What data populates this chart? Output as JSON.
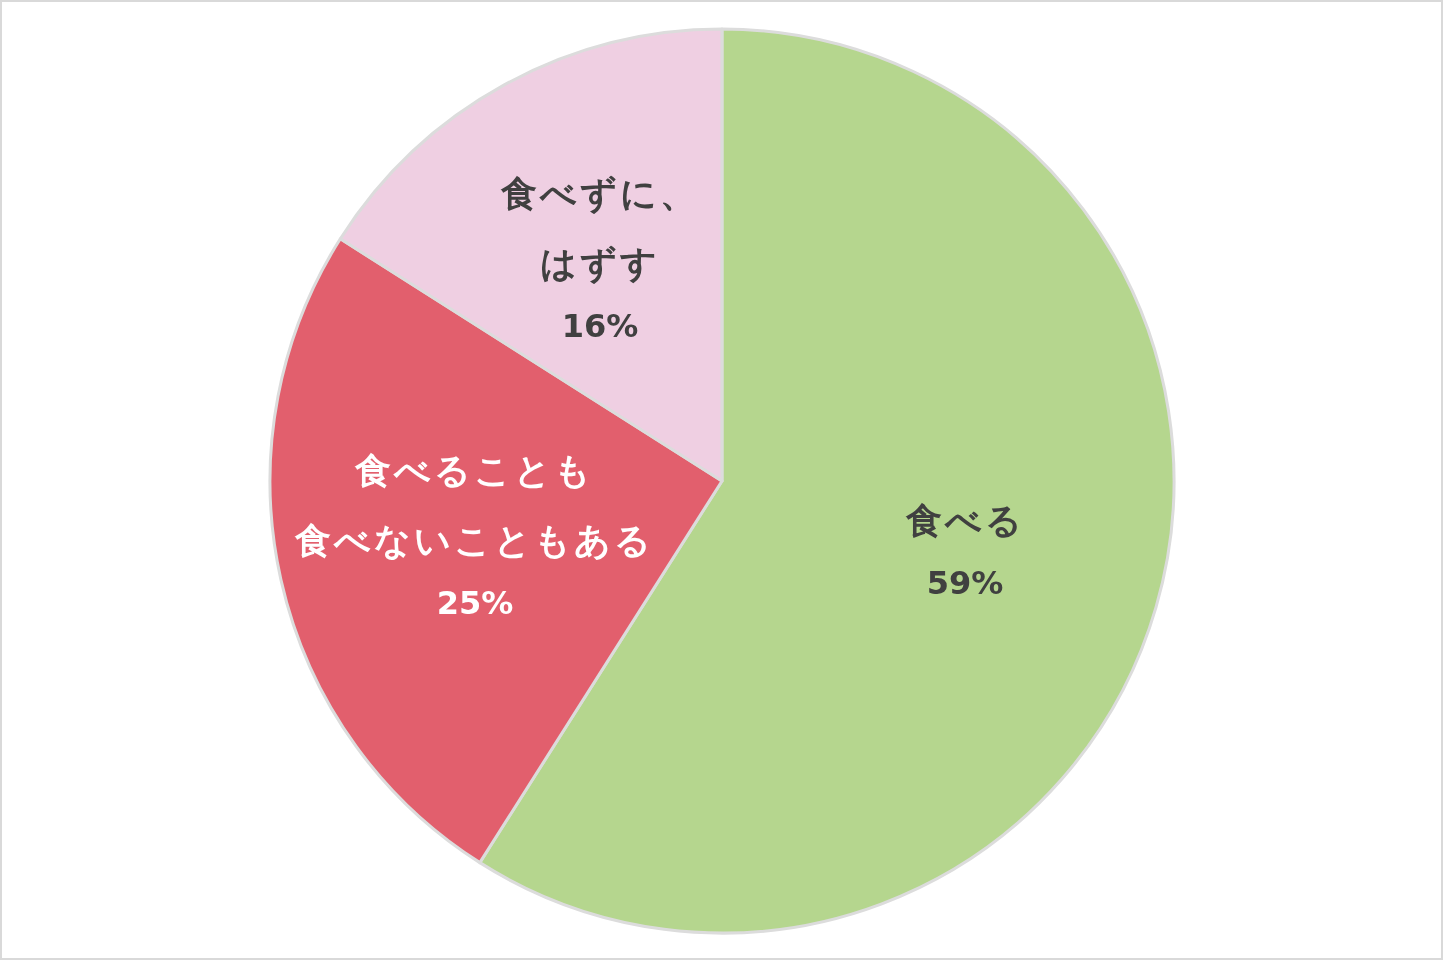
{
  "chart_data": {
    "type": "pie",
    "categories": [
      "食べる",
      "食べることも食べないこともある",
      "食べずに、はずす"
    ],
    "values": [
      59,
      25,
      16
    ],
    "colors": [
      "#b5d68e",
      "#e25f6d",
      "#efcfe2"
    ],
    "value_labels": [
      "59%",
      "25%",
      "16%"
    ],
    "legend": false
  }
}
